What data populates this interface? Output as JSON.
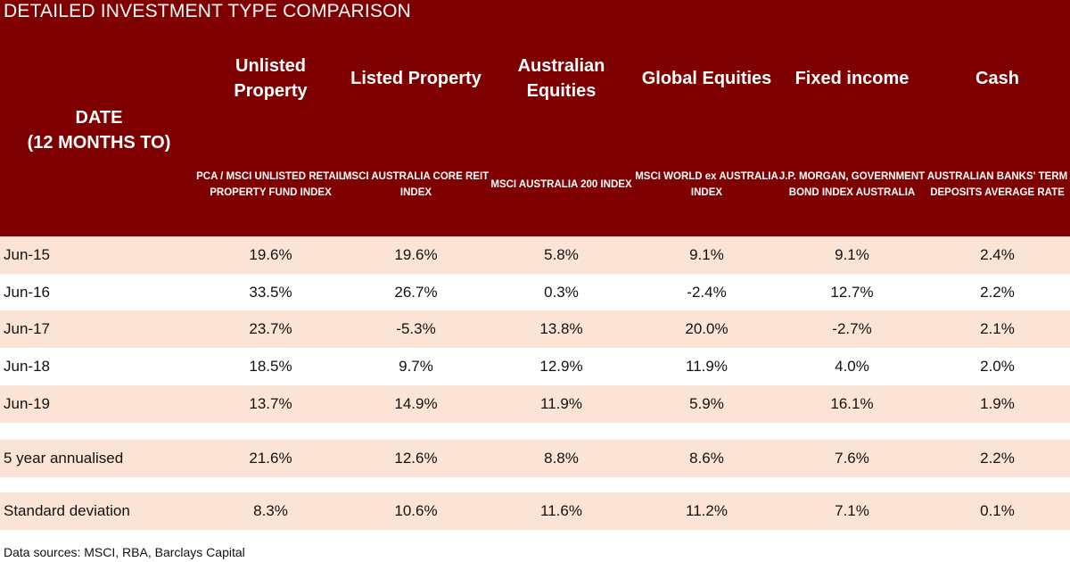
{
  "title": "DETAILED INVESTMENT TYPE COMPARISON",
  "date_header": [
    "DATE",
    "(12 MONTHS TO)"
  ],
  "colors": {
    "header_bg": "#7f0000",
    "row_shade": "#fbe4d6",
    "header_text": "#ffffff"
  },
  "chart_data": {
    "type": "table",
    "title": "DETAILED INVESTMENT TYPE COMPARISON",
    "columns": [
      {
        "name": "Unlisted Property",
        "index": "PCA / MSCI UNLISTED RETAIL PROPERTY FUND INDEX"
      },
      {
        "name": "Listed Property",
        "index": "MSCI AUSTRALIA CORE REIT INDEX"
      },
      {
        "name": "Australian Equities",
        "index": "MSCI AUSTRALIA 200 INDEX"
      },
      {
        "name": "Global Equities",
        "index": "MSCI WORLD ex AUSTRALIA INDEX"
      },
      {
        "name": "Fixed income",
        "index": "J.P. MORGAN, GOVERNMENT BOND INDEX AUSTRALIA"
      },
      {
        "name": "Cash",
        "index": "AUSTRALIAN BANKS' TERM DEPOSITS AVERAGE RATE"
      }
    ],
    "rows": [
      {
        "label": "Jun-15",
        "values": [
          "19.6%",
          "19.6%",
          "5.8%",
          "9.1%",
          "9.1%",
          "2.4%"
        ]
      },
      {
        "label": "Jun-16",
        "values": [
          "33.5%",
          "26.7%",
          "0.3%",
          "-2.4%",
          "12.7%",
          "2.2%"
        ]
      },
      {
        "label": "Jun-17",
        "values": [
          "23.7%",
          "-5.3%",
          "13.8%",
          "20.0%",
          "-2.7%",
          "2.1%"
        ]
      },
      {
        "label": "Jun-18",
        "values": [
          "18.5%",
          "9.7%",
          "12.9%",
          "11.9%",
          "4.0%",
          "2.0%"
        ]
      },
      {
        "label": "Jun-19",
        "values": [
          "13.7%",
          "14.9%",
          "11.9%",
          "5.9%",
          "16.1%",
          "1.9%"
        ]
      },
      {
        "label": "5 year annualised",
        "values": [
          "21.6%",
          "12.6%",
          "8.8%",
          "8.6%",
          "7.6%",
          "2.2%"
        ]
      },
      {
        "label": "Standard deviation",
        "values": [
          "8.3%",
          "10.6%",
          "11.6%",
          "11.2%",
          "7.1%",
          "0.1%"
        ]
      }
    ]
  },
  "footer": "Data sources: MSCI, RBA, Barclays Capital"
}
